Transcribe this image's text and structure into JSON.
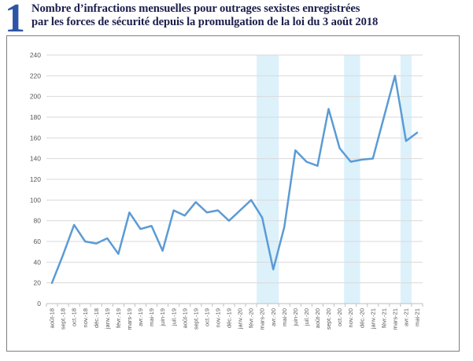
{
  "header": {
    "figure_number": "1",
    "title_line1": "Nombre d’infractions mensuelles pour outrages sexistes enregistrées",
    "title_line2": "par les forces de sécurité depuis la promulgation de la loi du 3 août 2018"
  },
  "colors": {
    "figure_number": "#2d55a5",
    "title": "#1b1e4b",
    "line": "#5b9bd5",
    "band": "#ddf1fb",
    "grid": "#d9d9d9",
    "axis": "#bfbfbf",
    "label": "#595959",
    "box_border": "#7f7f7f"
  },
  "chart_data": {
    "type": "line",
    "title": "Nombre d’infractions mensuelles pour outrages sexistes enregistrées par les forces de sécurité depuis la promulgation de la loi du 3 août 2018",
    "categories": [
      "août-18",
      "sept.-18",
      "oct.-18",
      "nov.-18",
      "déc.-18",
      "janv.-19",
      "févr.-19",
      "mars-19",
      "avr.-19",
      "mai-19",
      "juin-19",
      "juil.-19",
      "août-19",
      "sept.-19",
      "oct.-19",
      "nov.-19",
      "déc.-19",
      "janv.-20",
      "févr.-20",
      "mars-20",
      "avr.-20",
      "mai-20",
      "juin-20",
      "juil.-20",
      "août-20",
      "sept.-20",
      "oct.-20",
      "nov.-20",
      "déc.-20",
      "janv.-21",
      "févr.-21",
      "mars-21",
      "avr.-21",
      "mai-21"
    ],
    "values": [
      20,
      47,
      76,
      60,
      58,
      63,
      48,
      88,
      72,
      75,
      51,
      90,
      85,
      98,
      88,
      90,
      80,
      90,
      100,
      83,
      33,
      74,
      148,
      137,
      133,
      188,
      150,
      137,
      139,
      140,
      180,
      220,
      157,
      165
    ],
    "xlabel": "",
    "ylabel": "",
    "ylim": [
      0,
      240
    ],
    "ytick_step": 20,
    "yticks": [
      0,
      20,
      40,
      60,
      80,
      100,
      120,
      140,
      160,
      180,
      200,
      220,
      240
    ],
    "grid": true,
    "legend": false,
    "highlight_bands": [
      {
        "from": 19.0,
        "to": 21.0
      },
      {
        "from": 26.9,
        "to": 28.35
      },
      {
        "from": 32.0,
        "to": 33.0
      }
    ]
  }
}
